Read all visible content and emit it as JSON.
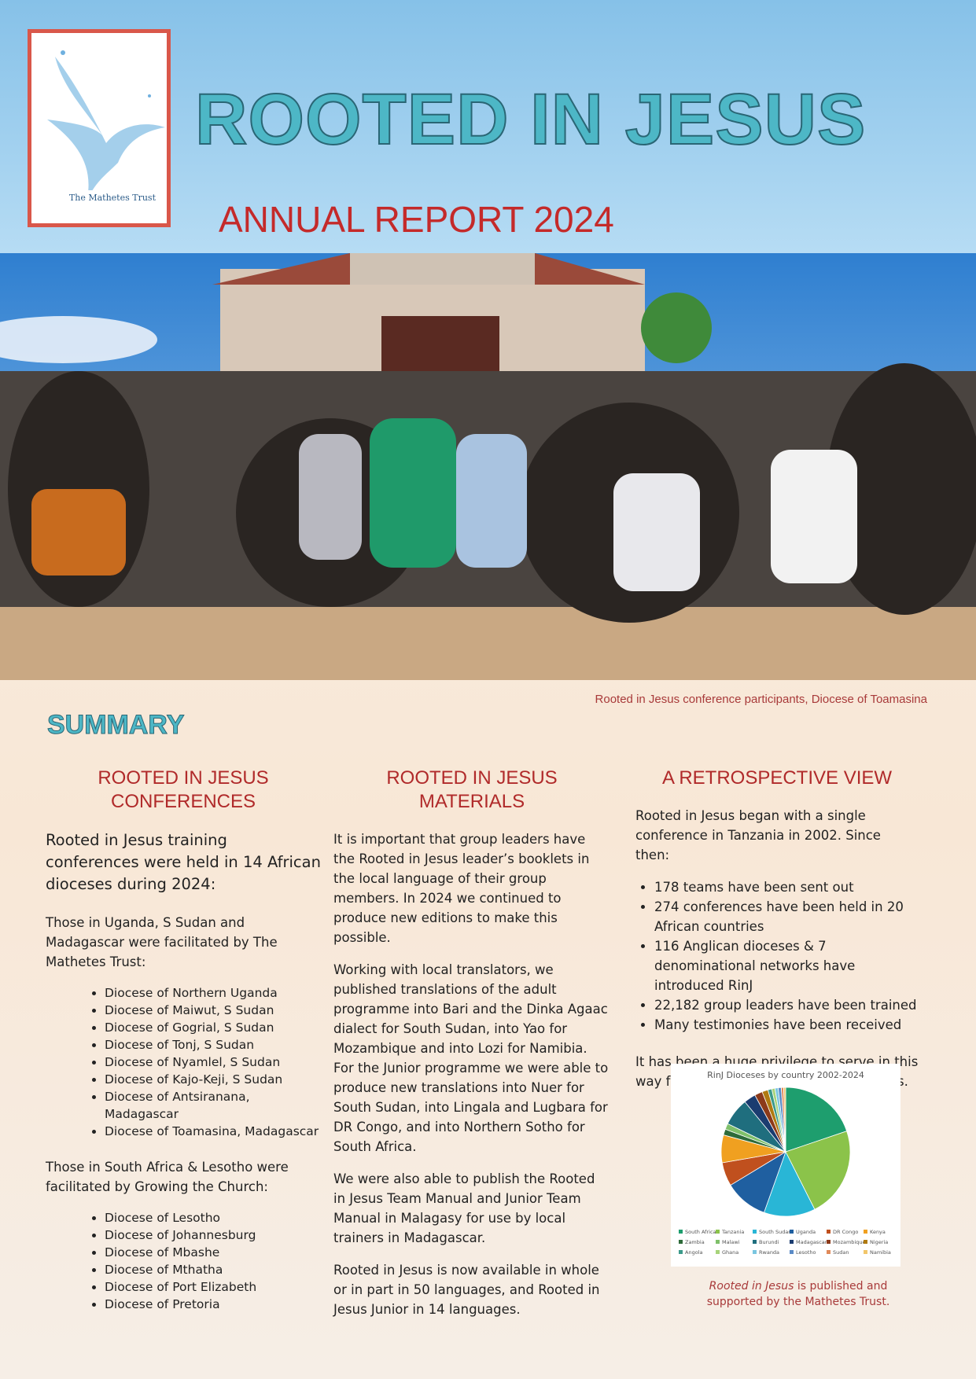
{
  "header": {
    "logo_caption": "The Mathetes Trust",
    "title": "ROOTED IN JESUS",
    "subtitle": "ANNUAL REPORT 2024"
  },
  "photo": {
    "caption": "Rooted in Jesus conference participants, Diocese of Toamasina"
  },
  "summary": {
    "heading": "SUMMARY",
    "conferences": {
      "heading": "ROOTED IN JESUS CONFERENCES",
      "intro": "Rooted in Jesus training conferences were held in 14 African dioceses during 2024:",
      "group1_intro": "Those in Uganda, S Sudan and Madagascar were facilitated by The Mathetes Trust:",
      "group1": [
        "Diocese of Northern Uganda",
        "Diocese of Maiwut, S Sudan",
        "Diocese of Gogrial, S Sudan",
        "Diocese of Tonj, S Sudan",
        "Diocese of Nyamlel, S Sudan",
        "Diocese of Kajo-Keji, S Sudan",
        "Diocese of Antsiranana, Madagascar",
        "Diocese of Toamasina, Madagascar"
      ],
      "group2_intro": "Those in South Africa & Lesotho were facilitated by Growing the Church:",
      "group2": [
        "Diocese of Lesotho",
        "Diocese of Johannesburg",
        "Diocese of Mbashe",
        "Diocese of Mthatha",
        "Diocese of Port Elizabeth",
        "Diocese of Pretoria"
      ]
    },
    "materials": {
      "heading": "ROOTED IN JESUS MATERIALS",
      "paragraphs": [
        "It is important that group leaders have the Rooted in Jesus leader’s booklets in the local language of their group members. In 2024 we continued to produce new editions to make this possible.",
        "Working with local translators, we published translations of the adult programme into Bari and the Dinka Agaac dialect for South Sudan, into Yao for Mozambique and into Lozi for Namibia. For the Junior programme we were able to produce new translations into Nuer for South Sudan, into Lingala and Lugbara for DR Congo, and into Northern Sotho for South Africa.",
        "We were also able to publish the Rooted in Jesus Team Manual and Junior Team Manual in Malagasy for use by local trainers in Madagascar.",
        "Rooted in Jesus is now available in whole or in part in 50 languages, and Rooted in Jesus Junior in 14 languages."
      ]
    },
    "retrospective": {
      "heading": "A RETROSPECTIVE VIEW",
      "intro": "Rooted in Jesus began with a single conference in Tanzania in 2002. Since then:",
      "points": [
        "178 teams have been sent out",
        "274 conferences have been held in 20 African countries",
        "116 Anglican dioceses & 7 denominational networks have introduced RinJ",
        "22,182 group leaders have been trained",
        "Many testimonies have been received"
      ],
      "closing": "It has been a huge privilege to serve in this way for so many years in so many places.",
      "note_italic": "Rooted in Jesus",
      "note_rest": "is published and supported by the Mathetes Trust."
    }
  },
  "chart_data": {
    "type": "pie",
    "title": "RinJ Dioceses by country 2002-2024",
    "categories": [
      "South Africa",
      "Tanzania",
      "South Sudan",
      "Uganda",
      "DR Congo",
      "Kenya",
      "Zambia",
      "Malawi",
      "Burundi",
      "Madagascar",
      "Mozambique",
      "Nigeria",
      "Angola",
      "Ghana",
      "Rwanda",
      "Lesotho",
      "Sudan",
      "Namibia"
    ],
    "values": [
      20,
      23,
      13,
      11,
      6,
      7,
      1.5,
      1.5,
      7,
      3,
      2,
      1.5,
      1,
      0.8,
      0.8,
      0.8,
      0.6,
      0.5
    ],
    "colors": [
      "#1e9e6e",
      "#8bc34a",
      "#29b6d6",
      "#1f5fa0",
      "#c0501e",
      "#f0a020",
      "#2e6b3a",
      "#7fc06a",
      "#1f6e7e",
      "#1b3c70",
      "#8c3a1a",
      "#b07a10",
      "#3b9a8a",
      "#a7d37a",
      "#7ac6e0",
      "#5a8ac6",
      "#e08a5a",
      "#f2c66a"
    ]
  }
}
